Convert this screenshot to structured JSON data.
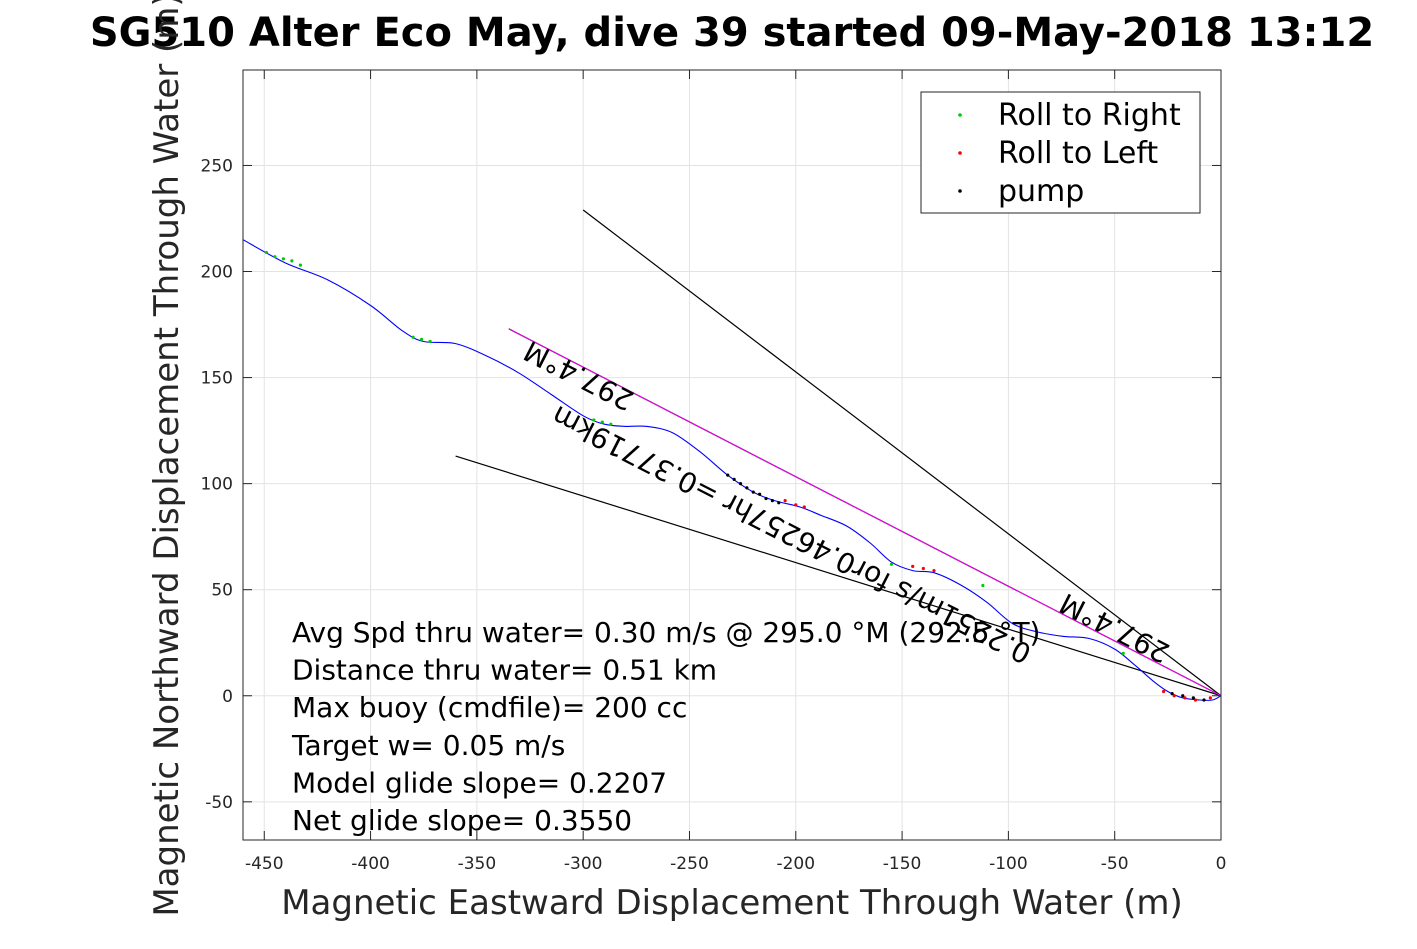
{
  "chart_data": {
    "type": "line",
    "title": "SG510 Alter Eco May, dive 39 started 09-May-2018 13:12",
    "xlabel": "Magnetic Eastward Displacement Through Water (m)",
    "ylabel": "Magnetic Northward Displacement Through Water (m)",
    "xlim": [
      -460,
      0
    ],
    "ylim": [
      -68,
      295
    ],
    "xticks": [
      -450,
      -400,
      -350,
      -300,
      -250,
      -200,
      -150,
      -100,
      -50,
      0
    ],
    "yticks": [
      -50,
      0,
      50,
      100,
      150,
      200,
      250
    ],
    "grid": true,
    "legend": {
      "placement": "top-right",
      "entries": [
        {
          "label": "Roll to Right",
          "color": "#00cc00"
        },
        {
          "label": "Roll to Left",
          "color": "#ff0000"
        },
        {
          "label": "pump",
          "color": "#000000"
        }
      ]
    },
    "track": {
      "name": "",
      "color": "#0000ff",
      "x": [
        -460,
        -440,
        -420,
        -400,
        -385,
        -375,
        -360,
        -345,
        -330,
        -315,
        -300,
        -290,
        -280,
        -270,
        -258,
        -245,
        -232,
        -220,
        -210,
        -198,
        -188,
        -176,
        -165,
        -155,
        -145,
        -135,
        -122,
        -110,
        -98,
        -86,
        -74,
        -62,
        -50,
        -40,
        -32,
        -25,
        -18,
        -10,
        -4,
        0
      ],
      "y": [
        215,
        204,
        196,
        184,
        172,
        167,
        166,
        160,
        152,
        142,
        132,
        128,
        127,
        127,
        124,
        115,
        104,
        96,
        92,
        89,
        85,
        80,
        72,
        63,
        59,
        58,
        52,
        44,
        34,
        30,
        28,
        27,
        22,
        14,
        7,
        2,
        -1,
        -2,
        -2,
        0
      ]
    },
    "roll_right_points": {
      "x": [
        -449,
        -445,
        -441,
        -437,
        -433,
        -380,
        -376,
        -372,
        -295,
        -291,
        -287,
        -155,
        -112,
        -46
      ],
      "y": [
        209,
        207,
        206,
        205,
        203,
        169,
        168,
        167,
        130,
        129,
        128,
        62,
        52,
        20
      ]
    },
    "roll_left_points": {
      "x": [
        -205,
        -200,
        -196,
        -145,
        -140,
        -135,
        -27,
        -22,
        -17,
        -12,
        -5
      ],
      "y": [
        92,
        90,
        89,
        61,
        60,
        59,
        2,
        0,
        -1,
        -2,
        -1
      ]
    },
    "pump_points": {
      "x": [
        -232,
        -229,
        -226,
        -223,
        -220,
        -217,
        -214,
        -211,
        -208,
        -23,
        -18,
        -13,
        -8
      ],
      "y": [
        104,
        102,
        100,
        98,
        96,
        95,
        93,
        92,
        91,
        1,
        0,
        -1,
        -2
      ]
    },
    "lines": [
      {
        "name": "",
        "color": "#000000",
        "x": [
          -300,
          0
        ],
        "y": [
          229,
          0
        ]
      },
      {
        "name": "",
        "color": "#000000",
        "x": [
          -360,
          0
        ],
        "y": [
          113,
          0
        ]
      },
      {
        "name": "",
        "color": "#000000",
        "x": [
          -335,
          0
        ],
        "y": [
          173,
          0
        ]
      },
      {
        "name": "",
        "color": "#ff00ff",
        "x": [
          -335,
          0
        ],
        "y": [
          173,
          0
        ]
      }
    ],
    "annotations": [
      {
        "text": "Avg Spd thru water=  0.30 m/s @ 295.0 °M (292.5 °T)"
      },
      {
        "text": "Distance thru water=  0.51 km"
      },
      {
        "text": "Max buoy (cmdfile)= 200 cc"
      },
      {
        "text": "Target w= 0.05 m/s"
      },
      {
        "text": "Model glide slope= 0.2207"
      },
      {
        "text": "Net glide slope= 0.3550"
      }
    ],
    "rotated_labels": [
      {
        "text": "297.4°M",
        "x": -300,
        "y": 155,
        "angle": 207
      },
      {
        "text": "0.2251m/s for0.46257hr =0.37719km",
        "x": -200,
        "y": 80,
        "angle": 207
      },
      {
        "text": "297.4°M",
        "x": -48,
        "y": 36,
        "angle": 207
      }
    ]
  }
}
